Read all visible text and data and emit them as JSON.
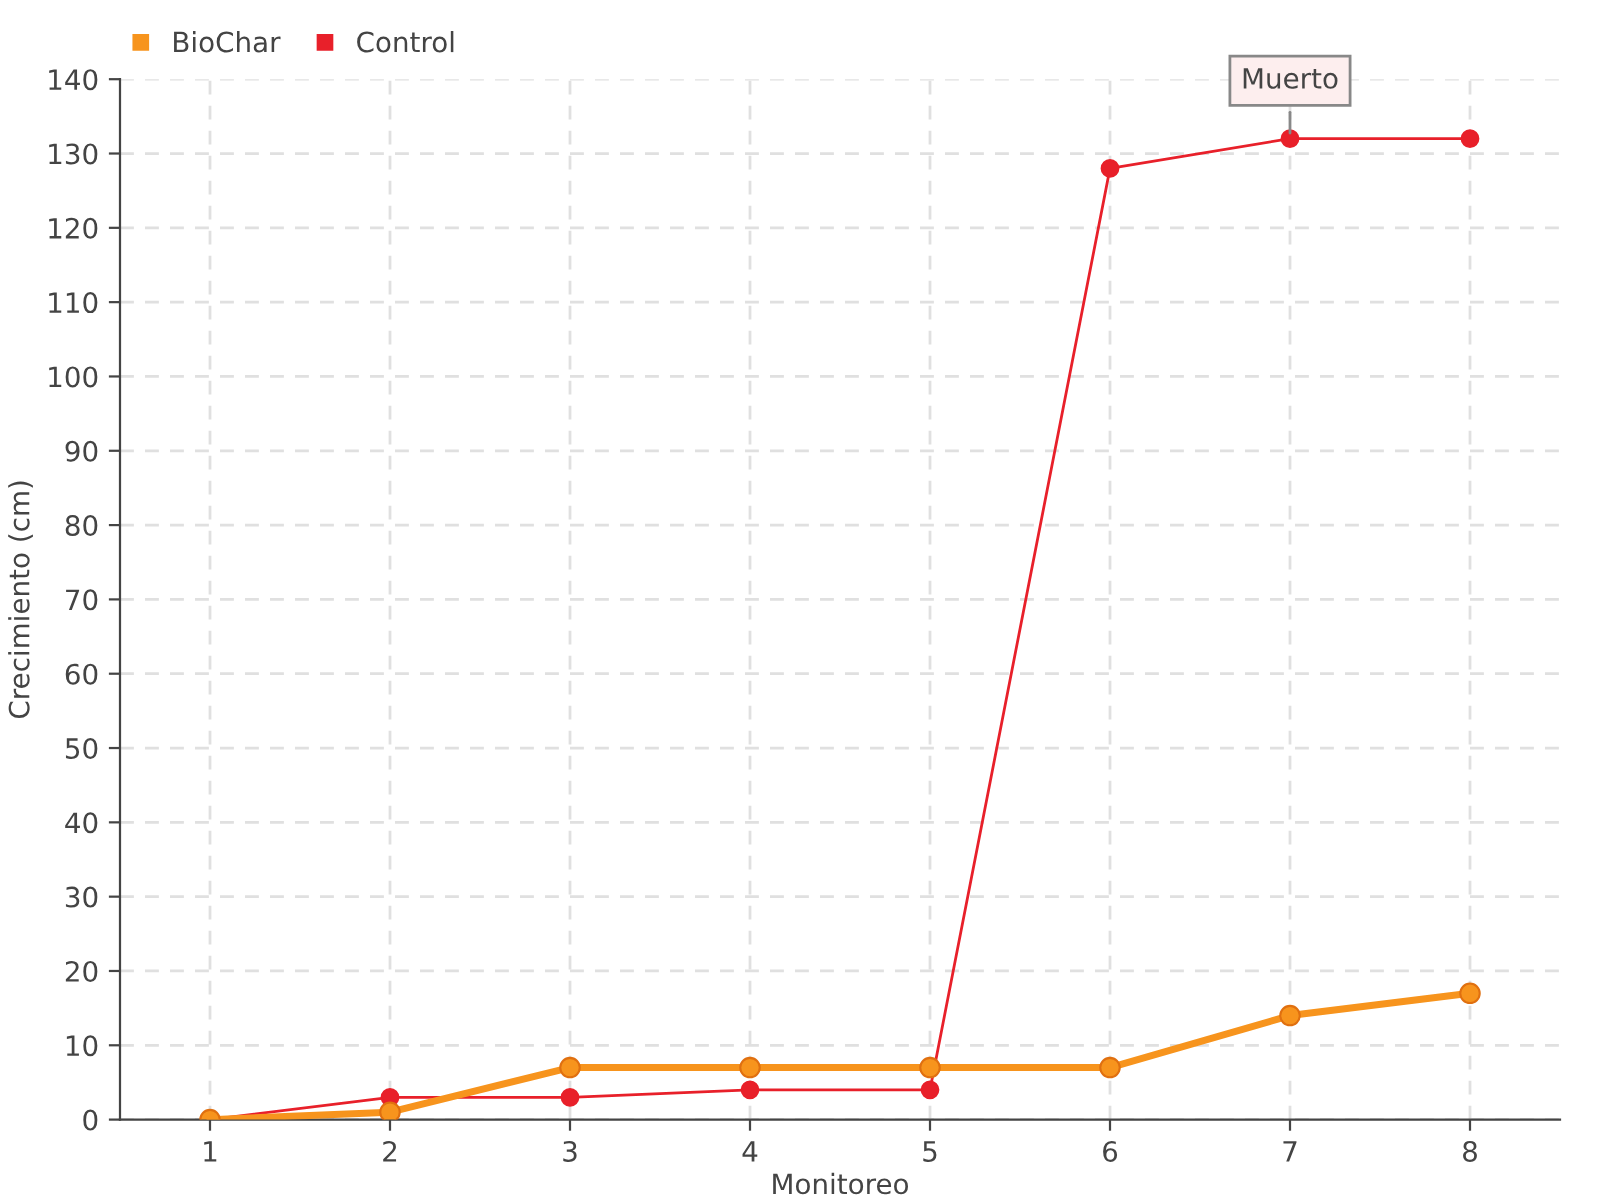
{
  "chart_data": {
    "type": "line",
    "xlabel": "Monitoreo",
    "ylabel": "Crecimiento (cm)",
    "categories": [
      "1",
      "2",
      "3",
      "4",
      "5",
      "6",
      "7",
      "8"
    ],
    "series": [
      {
        "name": "BioChar",
        "color": "#f7941d",
        "values": [
          0,
          1,
          7,
          7,
          7,
          7,
          14,
          17
        ]
      },
      {
        "name": "Control",
        "color": "#e8202a",
        "values": [
          0,
          3,
          3,
          4,
          4,
          128,
          132,
          132
        ]
      }
    ],
    "ylim": [
      0,
      140
    ],
    "yticks": [
      0,
      10,
      20,
      30,
      40,
      50,
      60,
      70,
      80,
      90,
      100,
      110,
      120,
      130,
      140
    ],
    "annotations": [
      {
        "text": "Muerto",
        "x": "7",
        "y": 132
      }
    ],
    "grid": true,
    "legend": "top left",
    "marker": "circle"
  }
}
